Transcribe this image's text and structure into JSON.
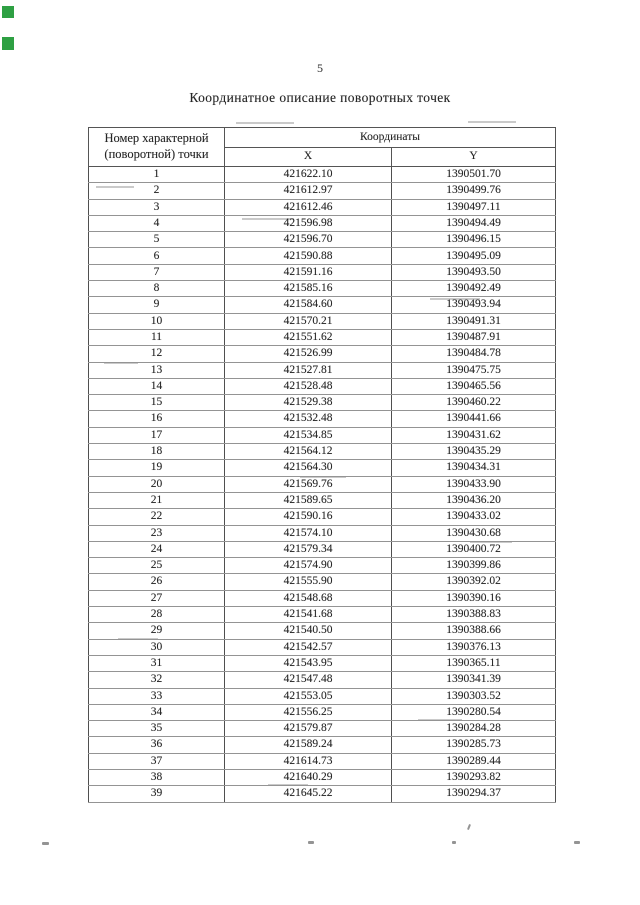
{
  "page": {
    "number": "5",
    "title": "Координатное описание поворотных точек"
  },
  "table": {
    "point_number_header": "Номер характерной (поворотной) точки",
    "coordinates_header": "Координаты",
    "x_header": "X",
    "y_header": "Y",
    "rows": [
      [
        "1",
        "421622.10",
        "1390501.70"
      ],
      [
        "2",
        "421612.97",
        "1390499.76"
      ],
      [
        "3",
        "421612.46",
        "1390497.11"
      ],
      [
        "4",
        "421596.98",
        "1390494.49"
      ],
      [
        "5",
        "421596.70",
        "1390496.15"
      ],
      [
        "6",
        "421590.88",
        "1390495.09"
      ],
      [
        "7",
        "421591.16",
        "1390493.50"
      ],
      [
        "8",
        "421585.16",
        "1390492.49"
      ],
      [
        "9",
        "421584.60",
        "1390493.94"
      ],
      [
        "10",
        "421570.21",
        "1390491.31"
      ],
      [
        "11",
        "421551.62",
        "1390487.91"
      ],
      [
        "12",
        "421526.99",
        "1390484.78"
      ],
      [
        "13",
        "421527.81",
        "1390475.75"
      ],
      [
        "14",
        "421528.48",
        "1390465.56"
      ],
      [
        "15",
        "421529.38",
        "1390460.22"
      ],
      [
        "16",
        "421532.48",
        "1390441.66"
      ],
      [
        "17",
        "421534.85",
        "1390431.62"
      ],
      [
        "18",
        "421564.12",
        "1390435.29"
      ],
      [
        "19",
        "421564.30",
        "1390434.31"
      ],
      [
        "20",
        "421569.76",
        "1390433.90"
      ],
      [
        "21",
        "421589.65",
        "1390436.20"
      ],
      [
        "22",
        "421590.16",
        "1390433.02"
      ],
      [
        "23",
        "421574.10",
        "1390430.68"
      ],
      [
        "24",
        "421579.34",
        "1390400.72"
      ],
      [
        "25",
        "421574.90",
        "1390399.86"
      ],
      [
        "26",
        "421555.90",
        "1390392.02"
      ],
      [
        "27",
        "421548.68",
        "1390390.16"
      ],
      [
        "28",
        "421541.68",
        "1390388.83"
      ],
      [
        "29",
        "421540.50",
        "1390388.66"
      ],
      [
        "30",
        "421542.57",
        "1390376.13"
      ],
      [
        "31",
        "421543.95",
        "1390365.11"
      ],
      [
        "32",
        "421547.48",
        "1390341.39"
      ],
      [
        "33",
        "421553.05",
        "1390303.52"
      ],
      [
        "34",
        "421556.25",
        "1390280.54"
      ],
      [
        "35",
        "421579.87",
        "1390284.28"
      ],
      [
        "36",
        "421589.24",
        "1390285.73"
      ],
      [
        "37",
        "421614.73",
        "1390289.44"
      ],
      [
        "38",
        "421640.29",
        "1390293.82"
      ],
      [
        "39",
        "421645.22",
        "1390294.37"
      ]
    ]
  },
  "artifacts": {
    "green_mark_color": "#2ea043",
    "ink_color": "#262626",
    "grid_light_color": "#949494",
    "grid_dark_color": "#4f4f4f"
  }
}
